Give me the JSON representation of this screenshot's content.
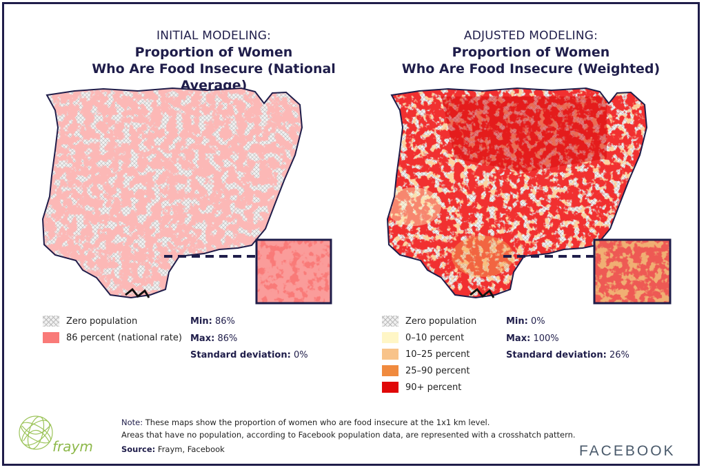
{
  "left": {
    "title_sup": "INITIAL MODELING:",
    "title_line1": "Proportion of Women",
    "title_line2": "Who Are Food Insecure (National Average)",
    "legend": [
      {
        "label": "Zero population",
        "type": "hatch"
      },
      {
        "label": "86 percent (national rate)",
        "color": "#f97a78"
      }
    ],
    "stats": {
      "min_label": "Min:",
      "min_value": "86%",
      "max_label": "Max:",
      "max_value": "86%",
      "sd_label": "Standard deviation:",
      "sd_value": "0%"
    }
  },
  "right": {
    "title_sup": "ADJUSTED MODELING:",
    "title_line1": "Proportion of Women",
    "title_line2": "Who Are Food Insecure (Weighted)",
    "legend": [
      {
        "label": "Zero population",
        "type": "hatch"
      },
      {
        "label": "0–10 percent",
        "color": "#fff6c6"
      },
      {
        "label": "10–25 percent",
        "color": "#f8c38a"
      },
      {
        "label": "25–90 percent",
        "color": "#f08a3e"
      },
      {
        "label": "90+ percent",
        "color": "#e00808"
      }
    ],
    "stats": {
      "min_label": "Min:",
      "min_value": "0%",
      "max_label": "Max:",
      "max_value": "100%",
      "sd_label": "Standard deviation:",
      "sd_value": "26%"
    }
  },
  "note": {
    "label": "Note:",
    "line1": " These maps show the proportion of women who are food insecure at the 1x1 km level.",
    "line2": "Areas that have no population, according to Facebook population data, are represented with a crosshatch pattern."
  },
  "source": {
    "label": "Source:",
    "text": " Fraym, Facebook"
  },
  "logos": {
    "fraym": "fraym",
    "facebook": "FACEBOOK"
  },
  "colors": {
    "navy": "#1f1d4a",
    "coral": "#f97a78",
    "red": "#e00808",
    "hatch": "#f1f1f1",
    "fraym_green": "#8db84a"
  }
}
